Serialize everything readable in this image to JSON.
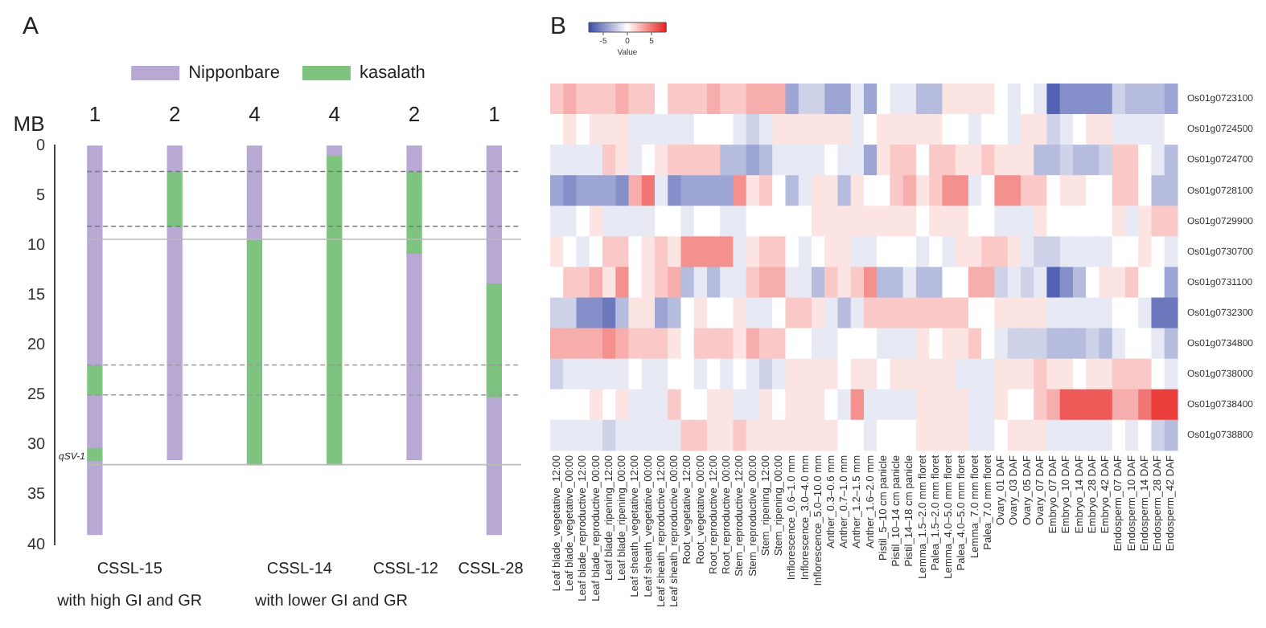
{
  "chart_data": [
    {
      "type": "bar",
      "title": "A",
      "ylabel": "MB",
      "stacked": true,
      "legend": "top",
      "grid": false,
      "categories": [
        "1",
        "2",
        "4",
        "4",
        "2",
        "1"
      ],
      "ylim": [
        40,
        0
      ],
      "yticks": [
        0,
        5,
        10,
        15,
        20,
        25,
        30,
        35,
        40
      ],
      "series": [
        {
          "name": "Nipponbare",
          "color": "#b8a9d4",
          "values": [
            22,
            2.6,
            9.4,
            1,
            2.6,
            13.8
          ]
        },
        {
          "name": "kasalath",
          "color": "#7ec37f",
          "values": [
            3,
            5.5,
            22.6,
            31,
            8.2,
            11.4
          ]
        },
        {
          "color": "#b8a9d4",
          "values": [
            5.3,
            23.4,
            null,
            null,
            20.7,
            13.8
          ]
        },
        {
          "color": "#7ec37f",
          "values": [
            1.3,
            null,
            null,
            null,
            null,
            null
          ]
        },
        {
          "color": "#b8a9d4",
          "values": [
            7.4,
            null,
            null,
            null,
            null,
            null
          ]
        }
      ],
      "ref_lines": [
        {
          "axis": "y",
          "value": 2.6,
          "color": "#777777",
          "line_style": "dashed"
        },
        {
          "axis": "y",
          "value": 8.1,
          "color": "#777777",
          "line_style": "dashed"
        },
        {
          "axis": "y",
          "value": 9.4,
          "color": "#bbbbbb",
          "line_style": "solid"
        },
        {
          "axis": "y",
          "value": 22,
          "color": "#999999",
          "line_style": "dashed"
        },
        {
          "axis": "y",
          "value": 25,
          "color": "#999999",
          "line_style": "dashed"
        },
        {
          "axis": "y",
          "value": 32,
          "color": "#bbbbbb",
          "line_style": "solid"
        }
      ],
      "annotations": [
        "qSV-1",
        "CSSL-15",
        "CSSL-14",
        "CSSL-12",
        "CSSL-28",
        "with high GI and GR",
        "with lower GI and GR"
      ]
    },
    {
      "type": "heatmap",
      "title": "B",
      "clabel": "Value",
      "clim": [
        -8,
        8
      ],
      "cticks": [
        -5,
        0,
        5
      ],
      "categories": [
        "Leaf blade_vegetative_12:00",
        "Leaf blade_vegetative_00:00",
        "Leaf blade_reproductive_12:00",
        "Leaf blade_reproductive_00:00",
        "Leaf blade_ripening_12:00",
        "Leaf blade_ripening_00:00",
        "Leaf sheath_vegetative_12:00",
        "Leaf sheath_vegetative_00:00",
        "Leaf sheath_reproductive_12:00",
        "Leaf sheath_reproductive_00:00",
        "Root_vegetative_12:00",
        "Root_vegetative_00:00",
        "Root_reproductive_12:00",
        "Root_reproductive_00:00",
        "Stem_reproductive_12:00",
        "Stem_reproductive_00:00",
        "Stem_ripening_12:00",
        "Stem_ripening_00:00",
        "Inflorescence_0.6–1.0 mm",
        "Inflorescence_3.0–4.0 mm",
        "Inflorescence_5.0–10.0 mm",
        "Anther_0.3–0.6 mm",
        "Anther_0.7–1.0 mm",
        "Anther_1.2–1.5 mm",
        "Anther_1.6–2.0 mm",
        "Pistil_5–10 cm panicle",
        "Pistil_10–14 cm panicle",
        "Pistil_14–18 cm panicle",
        "Lemma_1.5–2.0 mm floret",
        "Palea_1.5–2.0 mm floret",
        "Lemma_4.0–5.0 mm floret",
        "Palea_4.0–5.0 mm floret",
        "Lemma_7.0 mm floret",
        "Palea_7.0 mm floret",
        "Ovary_01 DAF",
        "Ovary_03 DAF",
        "Ovary_05 DAF",
        "Ovary_07 DAF",
        "Embryo_07 DAF",
        "Embryo_10 DAF",
        "Embryo_14 DAF",
        "Embryo_28 DAF",
        "Embryo_42 DAF",
        "Endosperm_07 DAF",
        "Endosperm_10 DAF",
        "Endosperm_14 DAF",
        "Endosperm_28 DAF",
        "Endosperm_42 DAF"
      ],
      "y_categories": [
        "Os01g0723100",
        "Os01g0724500",
        "Os01g0724700",
        "Os01g0728100",
        "Os01g0729900",
        "Os01g0730700",
        "Os01g0731100",
        "Os01g0732300",
        "Os01g0734800",
        "Os01g0738000",
        "Os01g0738400",
        "Os01g0738800"
      ],
      "cells": [
        [
          2,
          3,
          2,
          2,
          2,
          3,
          2,
          2,
          0,
          2,
          2,
          2,
          3,
          2,
          2,
          3,
          3,
          3,
          -4,
          -2,
          -2,
          -4,
          -4,
          -1,
          -4,
          0,
          -1,
          -1,
          -3,
          -3,
          1,
          1,
          1,
          1,
          0,
          -1,
          0,
          -1,
          -7,
          -5,
          -5,
          -5,
          -5,
          -2,
          -3,
          -3,
          -3,
          -4
        ],
        [
          0,
          1,
          0,
          1,
          1,
          1,
          -1,
          -1,
          -1,
          -1,
          -1,
          0,
          0,
          0,
          -1,
          -2,
          -1,
          1,
          1,
          1,
          1,
          1,
          1,
          -1,
          0,
          1,
          1,
          1,
          1,
          1,
          0,
          0,
          -1,
          0,
          0,
          -1,
          1,
          1,
          -2,
          -1,
          0,
          1,
          1,
          -1,
          -1,
          -1,
          -1,
          0
        ],
        [
          -1,
          -1,
          -1,
          -1,
          2,
          1,
          -1,
          0,
          1,
          2,
          2,
          2,
          2,
          -3,
          -3,
          -4,
          -3,
          -1,
          -1,
          -1,
          -1,
          0,
          -1,
          -1,
          -4,
          1,
          2,
          2,
          0,
          2,
          2,
          1,
          1,
          2,
          1,
          1,
          1,
          -3,
          -3,
          -2,
          -3,
          -3,
          -2,
          2,
          2,
          0,
          -1,
          -3
        ],
        [
          -4,
          -5,
          -4,
          -4,
          -4,
          -5,
          3,
          5,
          -1,
          -5,
          -4,
          -4,
          -4,
          -4,
          4,
          1,
          2,
          0,
          -3,
          -1,
          1,
          1,
          -3,
          1,
          0,
          0,
          2,
          3,
          1,
          2,
          4,
          4,
          -1,
          0,
          4,
          4,
          2,
          2,
          0,
          1,
          1,
          0,
          0,
          2,
          2,
          0,
          -3,
          -3
        ],
        [
          -1,
          -1,
          0,
          1,
          -1,
          -1,
          -1,
          -1,
          0,
          0,
          -1,
          0,
          0,
          -1,
          -1,
          0,
          0,
          0,
          0,
          0,
          1,
          1,
          1,
          1,
          1,
          1,
          1,
          1,
          0,
          1,
          1,
          1,
          0,
          0,
          -1,
          -1,
          -1,
          1,
          0,
          0,
          0,
          0,
          0,
          1,
          -1,
          1,
          2,
          2
        ],
        [
          1,
          0,
          -1,
          0,
          2,
          2,
          0,
          1,
          2,
          1,
          4,
          4,
          4,
          4,
          -1,
          1,
          2,
          2,
          0,
          -1,
          0,
          1,
          1,
          -1,
          -1,
          0,
          0,
          0,
          -1,
          0,
          -1,
          1,
          1,
          2,
          2,
          1,
          -1,
          -2,
          -2,
          -1,
          -1,
          -1,
          -1,
          0,
          0,
          1,
          0,
          -1
        ],
        [
          0,
          2,
          2,
          3,
          1,
          4,
          0,
          1,
          2,
          3,
          -3,
          -1,
          -3,
          -1,
          -1,
          2,
          3,
          3,
          -1,
          -1,
          -3,
          2,
          1,
          2,
          4,
          -3,
          -3,
          -1,
          -3,
          -3,
          0,
          0,
          3,
          3,
          -2,
          -1,
          -2,
          -1,
          -7,
          -5,
          -3,
          0,
          1,
          1,
          2,
          0,
          0,
          -4
        ],
        [
          -2,
          -2,
          -5,
          -5,
          -6,
          -3,
          1,
          1,
          -4,
          -3,
          0,
          1,
          0,
          0,
          1,
          -1,
          -1,
          0,
          2,
          2,
          1,
          -1,
          -3,
          -1,
          2,
          2,
          2,
          2,
          2,
          2,
          2,
          2,
          0,
          0,
          1,
          1,
          1,
          1,
          -1,
          -1,
          -1,
          -1,
          -1,
          0,
          0,
          -1,
          -6,
          -6
        ],
        [
          3,
          3,
          3,
          3,
          4,
          3,
          2,
          2,
          2,
          1,
          0,
          2,
          2,
          2,
          1,
          3,
          2,
          2,
          0,
          0,
          -1,
          -1,
          0,
          0,
          0,
          -1,
          -1,
          -1,
          1,
          0,
          1,
          1,
          2,
          0,
          -1,
          -2,
          -2,
          -2,
          -3,
          -3,
          -3,
          -2,
          -3,
          -1,
          0,
          0,
          -1,
          -3
        ],
        [
          -2,
          -1,
          -1,
          -1,
          -1,
          -1,
          0,
          -1,
          -1,
          0,
          0,
          -1,
          0,
          -1,
          0,
          -1,
          -2,
          -1,
          1,
          1,
          1,
          1,
          0,
          1,
          1,
          0,
          1,
          1,
          1,
          1,
          1,
          -1,
          -1,
          -1,
          1,
          1,
          1,
          2,
          1,
          1,
          0,
          1,
          1,
          2,
          2,
          2,
          0,
          -1
        ],
        [
          0,
          0,
          0,
          1,
          0,
          1,
          -1,
          -1,
          -1,
          2,
          0,
          0,
          1,
          1,
          -1,
          -1,
          1,
          0,
          1,
          1,
          1,
          0,
          -1,
          4,
          -1,
          -1,
          -1,
          -1,
          1,
          1,
          1,
          1,
          -1,
          -1,
          1,
          0,
          0,
          2,
          3,
          6,
          6,
          6,
          6,
          3,
          3,
          5,
          7,
          7
        ],
        [
          -1,
          -1,
          -1,
          -1,
          -2,
          -1,
          -1,
          -1,
          -1,
          -1,
          2,
          2,
          1,
          1,
          2,
          1,
          1,
          1,
          1,
          1,
          1,
          1,
          0,
          0,
          -1,
          0,
          0,
          0,
          1,
          1,
          1,
          1,
          -1,
          -1,
          0,
          1,
          1,
          1,
          -1,
          -1,
          -1,
          -1,
          -1,
          0,
          -1,
          0,
          -2,
          -3
        ]
      ]
    }
  ]
}
